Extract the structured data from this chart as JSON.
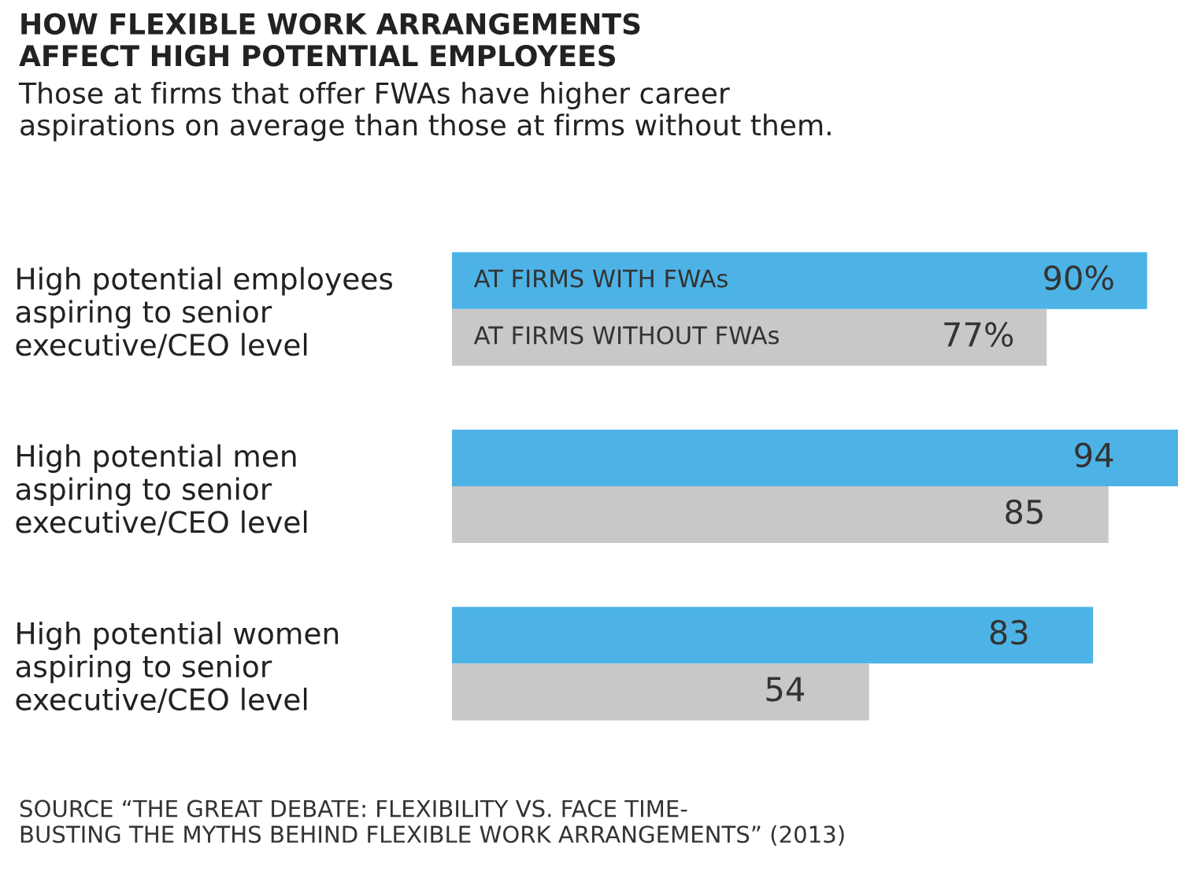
{
  "chart_data": {
    "type": "bar",
    "orientation": "horizontal",
    "title": "HOW FLEXIBLE WORK ARRANGEMENTS\nAFFECT HIGH POTENTIAL EMPLOYEES",
    "subtitle": "Those at firms that offer FWAs have higher career\naspirations on average than those at firms without them.",
    "categories": [
      "High potential employees\naspiring to senior\nexecutive/CEO level",
      "High potential men\naspiring to senior\nexecutive/CEO level",
      "High potential women\naspiring to senior\nexecutive/CEO level"
    ],
    "series": [
      {
        "name": "AT FIRMS WITH FWAs",
        "color": "#4db3e6",
        "values": [
          90,
          94,
          83
        ],
        "value_labels": [
          "90%",
          "94",
          "83"
        ]
      },
      {
        "name": "AT FIRMS WITHOUT FWAs",
        "color": "#c8c8c8",
        "values": [
          77,
          85,
          54
        ],
        "value_labels": [
          "77%",
          "85",
          "54"
        ]
      }
    ],
    "legend": false,
    "annotations": [
      "SOURCE “THE GREAT DEBATE: FLEXIBILITY VS. FACE TIME-\nBUSTING THE MYTHS BEHIND FLEXIBLE WORK ARRANGEMENTS” (2013)"
    ]
  }
}
